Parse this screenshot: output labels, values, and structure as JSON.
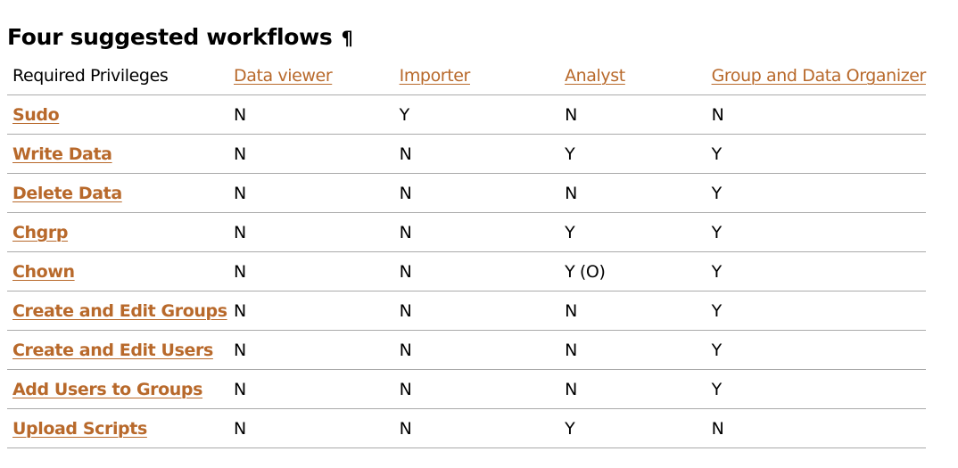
{
  "heading": {
    "title": "Four suggested workflows",
    "pilcrow": "¶"
  },
  "table": {
    "columns": [
      "Required Privileges",
      "Data viewer",
      "Importer",
      "Analyst",
      "Group and Data Organizer"
    ],
    "rows": [
      {
        "privilege": "Sudo",
        "values": [
          "N",
          "Y",
          "N",
          "N"
        ]
      },
      {
        "privilege": "Write Data",
        "values": [
          "N",
          "N",
          "Y",
          "Y"
        ]
      },
      {
        "privilege": "Delete Data",
        "values": [
          "N",
          "N",
          "N",
          "Y"
        ]
      },
      {
        "privilege": "Chgrp",
        "values": [
          "N",
          "N",
          "Y",
          "Y"
        ]
      },
      {
        "privilege": "Chown",
        "values": [
          "N",
          "N",
          "Y (O)",
          "Y"
        ]
      },
      {
        "privilege": "Create and Edit Groups",
        "values": [
          "N",
          "N",
          "N",
          "Y"
        ]
      },
      {
        "privilege": "Create and Edit Users",
        "values": [
          "N",
          "N",
          "N",
          "Y"
        ]
      },
      {
        "privilege": "Add Users to Groups",
        "values": [
          "N",
          "N",
          "N",
          "Y"
        ]
      },
      {
        "privilege": "Upload Scripts",
        "values": [
          "N",
          "N",
          "Y",
          "N"
        ]
      }
    ]
  },
  "colors": {
    "link": "#b8692b",
    "rule": "#aaaaaa",
    "text": "#000000"
  }
}
